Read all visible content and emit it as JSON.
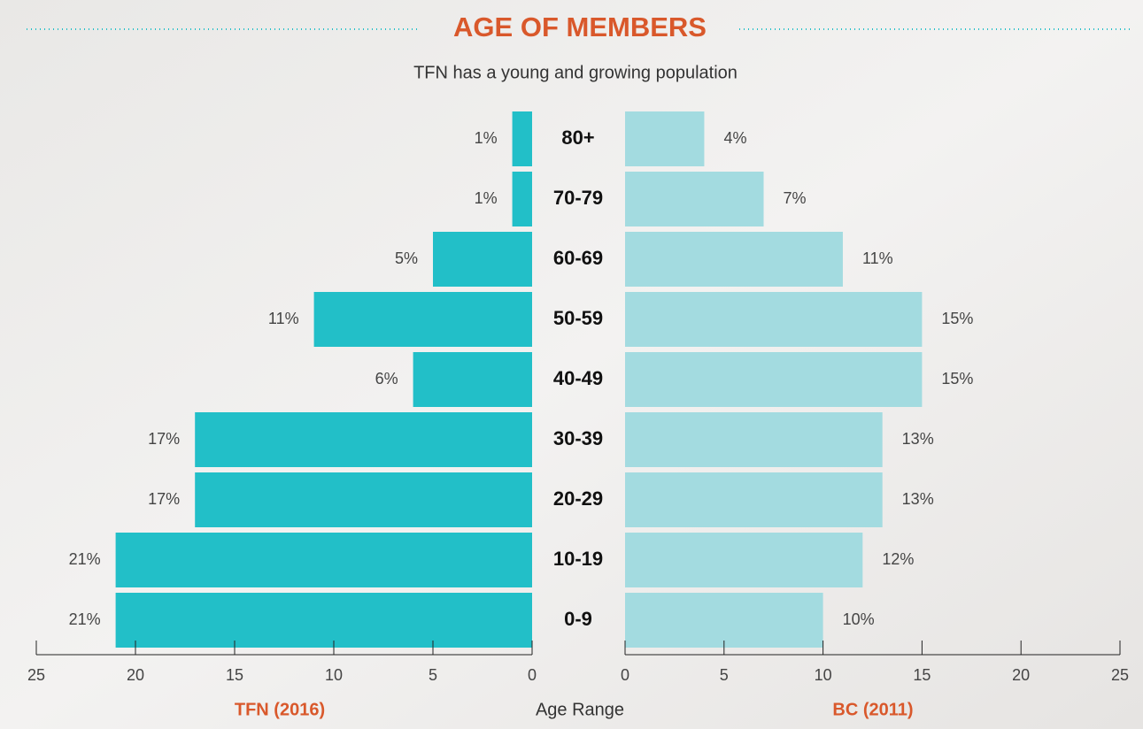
{
  "chart_data": {
    "type": "pyramid",
    "title": "AGE OF MEMBERS",
    "subtitle": "TFN has a young and growing population",
    "categories_label": "Age Range",
    "categories": [
      "80+",
      "70-79",
      "60-69",
      "50-59",
      "40-49",
      "30-39",
      "20-29",
      "10-19",
      "0-9"
    ],
    "series": [
      {
        "name": "TFN (2016)",
        "color": "#22bfc8",
        "values": [
          1,
          1,
          5,
          11,
          6,
          17,
          17,
          21,
          21
        ],
        "value_labels": [
          "1%",
          "1%",
          "5%",
          "11%",
          "6%",
          "17%",
          "17%",
          "21%",
          "21%"
        ]
      },
      {
        "name": "BC (2011)",
        "color": "#a3dbe0",
        "values": [
          4,
          7,
          11,
          15,
          15,
          13,
          13,
          12,
          10
        ],
        "value_labels": [
          "4%",
          "7%",
          "11%",
          "15%",
          "15%",
          "13%",
          "13%",
          "12%",
          "10%"
        ]
      }
    ],
    "xlim": [
      0,
      25
    ],
    "xticks": [
      0,
      5,
      10,
      15,
      20,
      25
    ]
  }
}
